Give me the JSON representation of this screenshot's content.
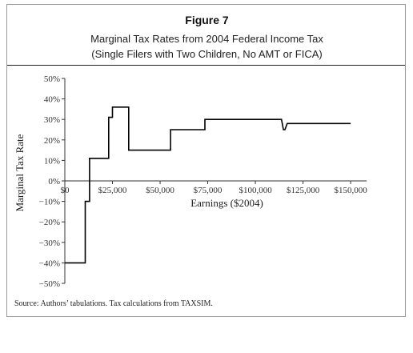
{
  "figure": {
    "label": "Figure 7",
    "title_line1": "Marginal Tax Rates from 2004 Federal Income Tax",
    "title_line2": "(Single Filers with Two Children, No AMT or FICA)",
    "source": "Source: Authors’ tabulations. Tax calculations from TAXSIM."
  },
  "chart_data": {
    "type": "line",
    "title": "Marginal Tax Rates from 2004 Federal Income Tax",
    "subtitle": "(Single Filers with Two Children, No AMT or FICA)",
    "xlabel": "Earnings ($2004)",
    "ylabel": "Marginal Tax Rate",
    "xlim": [
      0,
      155000
    ],
    "ylim": [
      -50,
      50
    ],
    "grid": false,
    "x_ticks": [
      0,
      25000,
      50000,
      75000,
      100000,
      125000,
      150000
    ],
    "x_tick_labels": [
      "$0",
      "$25,000",
      "$50,000",
      "$75,000",
      "$100,000",
      "$125,000",
      "$150,000"
    ],
    "y_ticks": [
      -50,
      -40,
      -30,
      -20,
      -10,
      0,
      10,
      20,
      30,
      40,
      50
    ],
    "y_tick_labels": [
      "-50%",
      "-40%",
      "-30%",
      "-20%",
      "-10%",
      "0%",
      "10%",
      "20%",
      "30%",
      "40%",
      "50%"
    ],
    "series": [
      {
        "color": "#000000",
        "x": [
          0,
          10700,
          10700,
          13000,
          13000,
          15500,
          15500,
          23000,
          23000,
          25000,
          25000,
          26500,
          26500,
          33500,
          33500,
          55500,
          55500,
          73500,
          73500,
          113700,
          114700,
          115500,
          116700,
          150000
        ],
        "y": [
          -40,
          -40,
          -10,
          -10,
          11,
          11,
          11,
          11,
          31,
          31,
          36,
          36,
          36,
          36,
          15,
          15,
          25,
          25,
          30,
          30,
          25,
          25,
          28,
          28
        ]
      }
    ]
  }
}
